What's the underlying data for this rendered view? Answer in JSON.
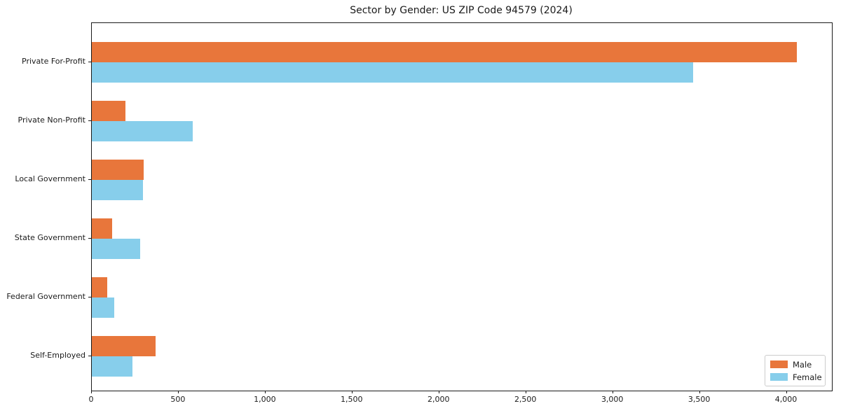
{
  "chart_data": {
    "type": "bar",
    "orientation": "horizontal",
    "title": "Sector by Gender: US ZIP Code 94579 (2024)",
    "categories": [
      "Private For-Profit",
      "Private Non-Profit",
      "Local Government",
      "State Government",
      "Federal Government",
      "Self-Employed"
    ],
    "series": [
      {
        "name": "Male",
        "color": "#E8763B",
        "values": [
          4060,
          195,
          300,
          115,
          90,
          365
        ]
      },
      {
        "name": "Female",
        "color": "#87CEEB",
        "values": [
          3460,
          580,
          295,
          280,
          130,
          235
        ]
      }
    ],
    "xlim": [
      0,
      4260
    ],
    "x_ticks": [
      0,
      500,
      1000,
      1500,
      2000,
      2500,
      3000,
      3500,
      4000
    ],
    "x_tick_labels": [
      "0",
      "500",
      "1,000",
      "1,500",
      "2,000",
      "2,500",
      "3,000",
      "3,500",
      "4,000"
    ],
    "xlabel": "",
    "ylabel": "",
    "grid": false,
    "legend_position": "lower right",
    "colors": {
      "spine": "#1a1a1a",
      "text": "#1a1a1a",
      "background": "#ffffff"
    }
  }
}
